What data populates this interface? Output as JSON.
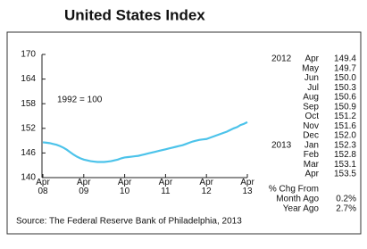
{
  "chart_data": {
    "type": "line",
    "title": "United States Index",
    "annotation": "1992 = 100",
    "source": "Source: The Federal Reserve Bank of Philadelphia, 2013",
    "categories": [
      "Apr 08",
      null,
      null,
      null,
      null,
      null,
      null,
      null,
      null,
      null,
      null,
      null,
      "Apr 09",
      null,
      null,
      null,
      null,
      null,
      null,
      null,
      null,
      null,
      null,
      null,
      "Apr 10",
      null,
      null,
      null,
      null,
      null,
      null,
      null,
      null,
      null,
      null,
      null,
      "Apr 11",
      null,
      null,
      null,
      null,
      null,
      null,
      null,
      null,
      null,
      null,
      null,
      "Apr 12",
      null,
      null,
      null,
      null,
      null,
      null,
      null,
      null,
      null,
      null,
      null,
      "Apr 13"
    ],
    "series": [
      {
        "name": "United States Index",
        "color": "#4cc3ea",
        "values": [
          148.6,
          148.5,
          148.4,
          148.2,
          148.0,
          147.7,
          147.3,
          146.8,
          146.2,
          145.6,
          145.1,
          144.7,
          144.4,
          144.2,
          144.0,
          143.9,
          143.8,
          143.8,
          143.8,
          143.9,
          144.0,
          144.2,
          144.4,
          144.7,
          144.9,
          145.0,
          145.1,
          145.2,
          145.3,
          145.5,
          145.7,
          145.9,
          146.1,
          146.3,
          146.5,
          146.7,
          146.9,
          147.1,
          147.3,
          147.5,
          147.7,
          147.9,
          148.2,
          148.5,
          148.8,
          149.0,
          149.2,
          149.3,
          149.4,
          149.7,
          150.0,
          150.3,
          150.6,
          150.9,
          151.2,
          151.6,
          152.0,
          152.3,
          152.8,
          153.1,
          153.5
        ]
      }
    ],
    "ylim": [
      140,
      170
    ],
    "yticks": [
      140,
      146,
      152,
      158,
      164,
      170
    ]
  },
  "table": {
    "groups": [
      {
        "year": "2012",
        "rows": [
          [
            "Apr",
            "149.4"
          ],
          [
            "May",
            "149.7"
          ],
          [
            "Jun",
            "150.0"
          ],
          [
            "Jul",
            "150.3"
          ],
          [
            "Aug",
            "150.6"
          ],
          [
            "Sep",
            "150.9"
          ],
          [
            "Oct",
            "151.2"
          ],
          [
            "Nov",
            "151.6"
          ],
          [
            "Dec",
            "152.0"
          ]
        ]
      },
      {
        "year": "2013",
        "rows": [
          [
            "Jan",
            "152.3"
          ],
          [
            "Feb",
            "152.8"
          ],
          [
            "Mar",
            "153.1"
          ],
          [
            "Apr",
            "153.5"
          ]
        ]
      }
    ],
    "change": {
      "heading": "% Chg From",
      "rows": [
        [
          "Month Ago",
          "0.2%"
        ],
        [
          "Year Ago",
          "2.7%"
        ]
      ]
    }
  }
}
